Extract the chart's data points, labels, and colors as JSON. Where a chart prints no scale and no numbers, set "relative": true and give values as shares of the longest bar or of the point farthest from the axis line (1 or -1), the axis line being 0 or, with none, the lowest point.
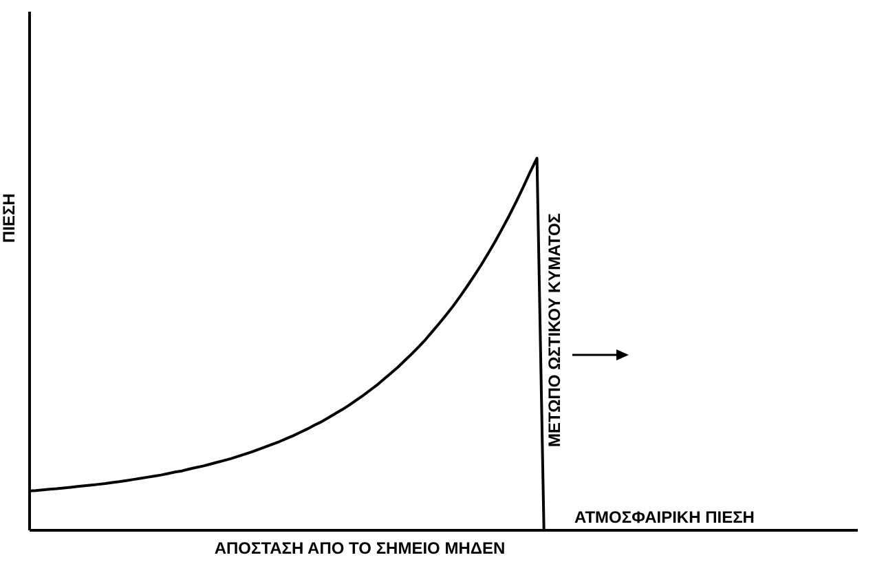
{
  "chart_data": {
    "type": "line",
    "relative": true,
    "xlabel": "ΑΠΟΣΤΑΣΗ ΑΠΟ ΤΟ ΣΗΜΕΙΟ ΜΗΔΕΝ",
    "ylabel": "ΠΙΕΣΗ",
    "annotations": [
      "ΜΕΤΩΠΟ ΩΣΤΙΚΟΥ ΚΥΜΑΤΟΣ",
      "ΑΤΜΟΣΦΑΙΡΙΚΗ ΠΙΕΣΗ"
    ],
    "grid": false,
    "marker": "none",
    "line_style": "solid",
    "categories": [
      null,
      null,
      null,
      null,
      null,
      null,
      null,
      null,
      null,
      null,
      null,
      null,
      null,
      null,
      null,
      null,
      null,
      null,
      null,
      null,
      null,
      null,
      null,
      null,
      null,
      null,
      null,
      null,
      null,
      null,
      null,
      null,
      null,
      null,
      null,
      null,
      null,
      null,
      null,
      null,
      null,
      null,
      null,
      null,
      null,
      null,
      null,
      null,
      null,
      null,
      null,
      null,
      null,
      null,
      null,
      null,
      null,
      null,
      null,
      null,
      null,
      null,
      null,
      null,
      null,
      null,
      null,
      null,
      null,
      null,
      null,
      null,
      null,
      null,
      null,
      null,
      null,
      null,
      null,
      null,
      null,
      null,
      null,
      null,
      null,
      null,
      null,
      null,
      null,
      null,
      null,
      null,
      null,
      null,
      null,
      null,
      null,
      null,
      null,
      null,
      null,
      null,
      null,
      null,
      null,
      null,
      null,
      null,
      null,
      null,
      null,
      null,
      null,
      null,
      null,
      null,
      null,
      null,
      null,
      null
    ],
    "series": [
      {
        "color": "#000000",
        "values": [
          0.104,
          0.105,
          0.107,
          0.109,
          0.11,
          0.112,
          0.114,
          0.116,
          0.118,
          0.12,
          0.122,
          0.124,
          0.127,
          0.129,
          0.132,
          0.135,
          0.138,
          0.141,
          0.144,
          0.147,
          0.151,
          0.155,
          0.158,
          0.163,
          0.167,
          0.171,
          0.176,
          0.181,
          0.186,
          0.191,
          0.197,
          0.203,
          0.209,
          0.216,
          0.223,
          0.23,
          0.237,
          0.245,
          0.253,
          0.262,
          0.271,
          0.281,
          0.29,
          0.301,
          0.312,
          0.323,
          0.335,
          0.348,
          0.361,
          0.375,
          0.389,
          0.405,
          0.421,
          0.437,
          0.455,
          0.473,
          0.492,
          0.512,
          0.534,
          0.556,
          0.579,
          0.603,
          0.629,
          0.656,
          0.684,
          0.713,
          0.744,
          0.776,
          0.81,
          0.845,
          0.882,
          0.921,
          0.962,
          1,
          0,
          null,
          null,
          null,
          null,
          null,
          null,
          null,
          null,
          null,
          null,
          null,
          null,
          null,
          null,
          null,
          null,
          null,
          null,
          null,
          null,
          null,
          null,
          null,
          null,
          null,
          null,
          null,
          null,
          null,
          null,
          null,
          null,
          null,
          null,
          null,
          null,
          null,
          null,
          null,
          null,
          null,
          null,
          null,
          null,
          null
        ]
      }
    ]
  }
}
